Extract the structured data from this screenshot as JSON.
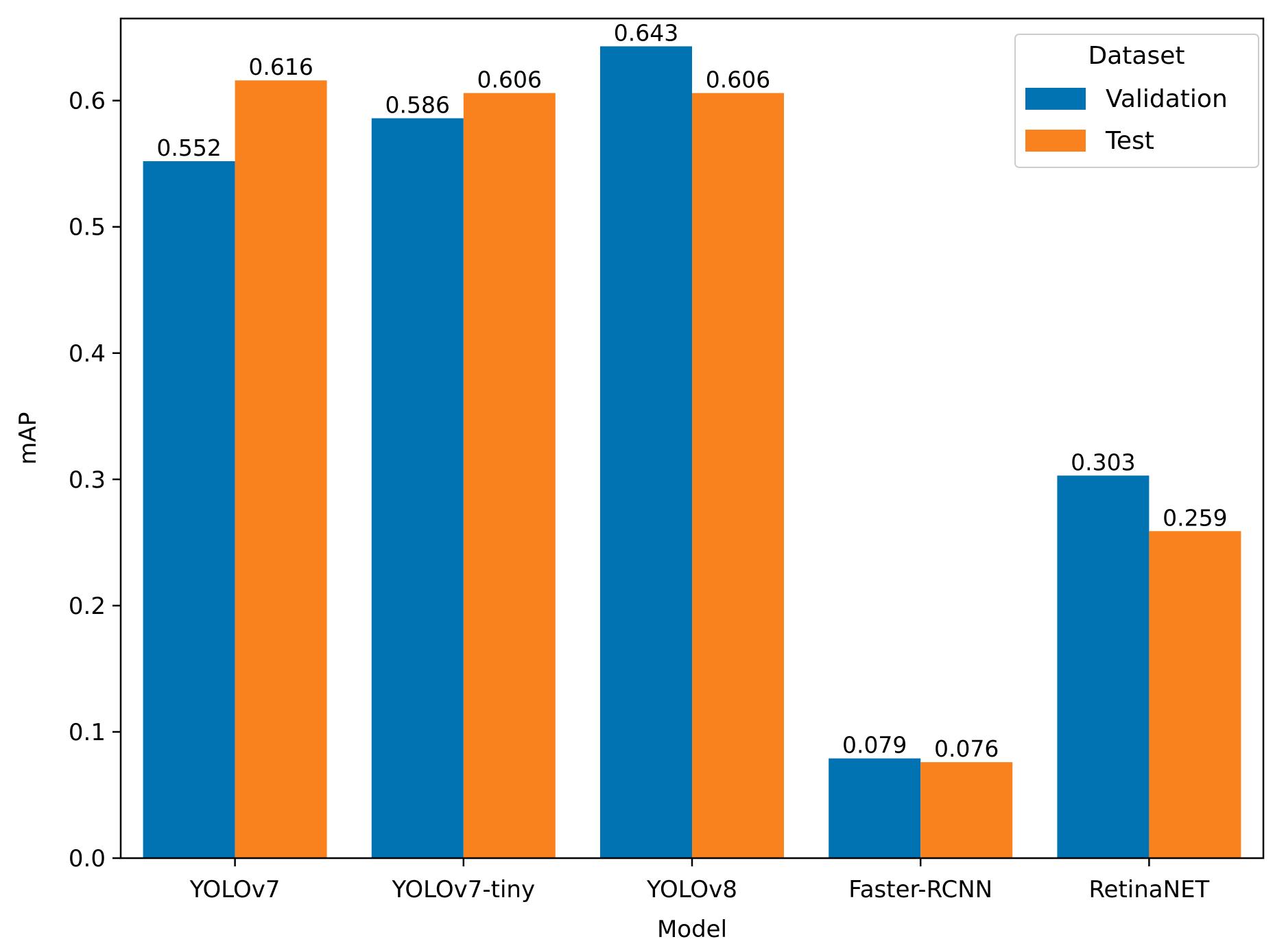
{
  "chart_data": {
    "type": "bar",
    "title": "",
    "xlabel": "Model",
    "ylabel": "mAP",
    "categories": [
      "YOLOv7",
      "YOLOv7-tiny",
      "YOLOv8",
      "Faster-RCNN",
      "RetinaNET"
    ],
    "series": [
      {
        "name": "Validation",
        "color": "#0173b2",
        "values": [
          0.552,
          0.586,
          0.643,
          0.079,
          0.303
        ],
        "labels": [
          "0.552",
          "0.586",
          "0.643",
          "0.079",
          "0.303"
        ]
      },
      {
        "name": "Test",
        "color": "#f9821f",
        "values": [
          0.616,
          0.606,
          0.606,
          0.076,
          0.259
        ],
        "labels": [
          "0.616",
          "0.606",
          "0.606",
          "0.076",
          "0.259"
        ]
      }
    ],
    "ylim": [
      0,
      0.665
    ],
    "yticks": [
      0.0,
      0.1,
      0.2,
      0.3,
      0.4,
      0.5,
      0.6
    ],
    "ytick_labels": [
      "0.0",
      "0.1",
      "0.2",
      "0.3",
      "0.4",
      "0.5",
      "0.6"
    ],
    "grid": false,
    "legend": {
      "title": "Dataset",
      "placement": "top-right"
    }
  }
}
